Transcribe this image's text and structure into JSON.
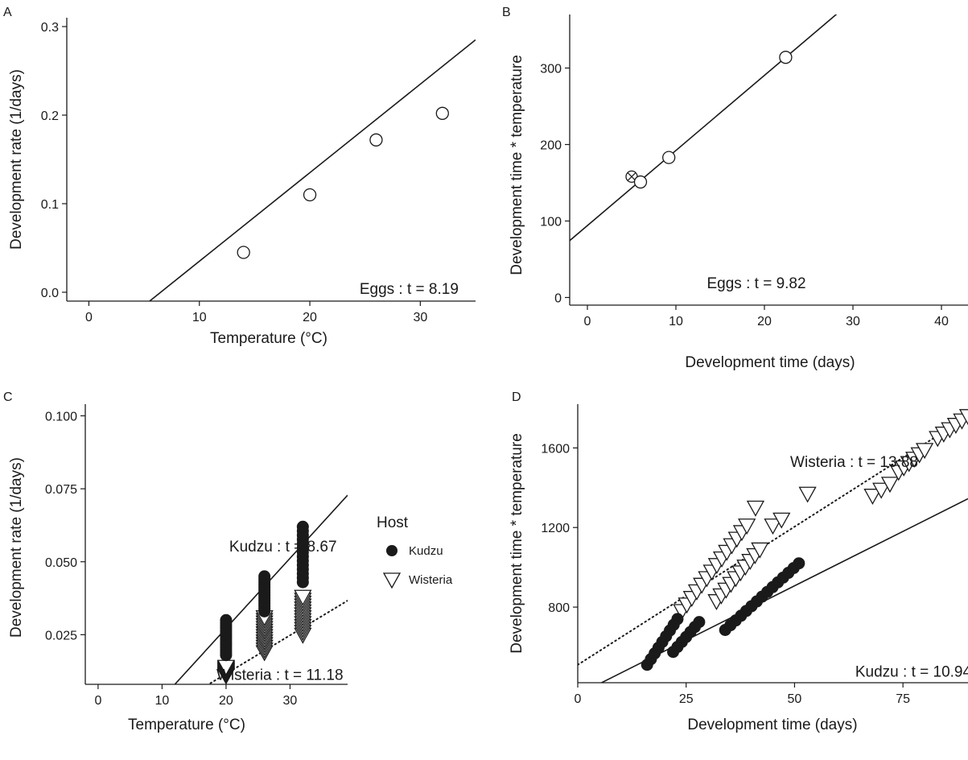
{
  "chart_data": [
    {
      "panel": "A",
      "type": "scatter",
      "xlabel": "Temperature (°C)",
      "ylabel": "Development rate (1/days)",
      "xlim": [
        -2,
        35
      ],
      "ylim": [
        -0.01,
        0.31
      ],
      "xticks": [
        0,
        10,
        20,
        30
      ],
      "yticks": [
        0.0,
        0.1,
        0.2,
        0.3
      ],
      "ytick_labels": [
        "0.0",
        "0.1",
        "0.2",
        "0.3"
      ],
      "points": [
        {
          "x": 14,
          "y": 0.045
        },
        {
          "x": 20,
          "y": 0.11
        },
        {
          "x": 26,
          "y": 0.172
        },
        {
          "x": 32,
          "y": 0.202
        }
      ],
      "fit_line": {
        "slope": 0.01,
        "intercept": -0.065,
        "x_from": -2,
        "x_to": 35,
        "style": "solid"
      },
      "annotation": {
        "text": "Eggs : t = 8.19",
        "x": 24.5,
        "y": -0.002
      }
    },
    {
      "panel": "B",
      "type": "scatter",
      "xlabel": "Development time (days)",
      "ylabel": "Development time * temperature",
      "xlim": [
        -2,
        43
      ],
      "ylim": [
        -10,
        370
      ],
      "xticks": [
        0,
        10,
        20,
        30,
        40
      ],
      "yticks": [
        0,
        100,
        200,
        300
      ],
      "ytick_labels": [
        "0",
        "100",
        "200",
        "300"
      ],
      "points": [
        {
          "x": 5,
          "y": 158,
          "marker": "crossed-circle"
        },
        {
          "x": 6,
          "y": 151
        },
        {
          "x": 9.2,
          "y": 183
        },
        {
          "x": 22.4,
          "y": 314
        }
      ],
      "fit_line": {
        "slope": 9.82,
        "intercept": 94,
        "x_from": -2,
        "x_to": 43,
        "style": "solid"
      },
      "annotation": {
        "text": "Eggs : t = 9.82",
        "x": 13.5,
        "y": 12
      }
    },
    {
      "panel": "C",
      "type": "scatter",
      "xlabel": "Temperature (°C)",
      "ylabel": "Development rate (1/days)",
      "xlim": [
        -2,
        39
      ],
      "ylim": [
        0.008,
        0.104
      ],
      "xticks": [
        0,
        10,
        20,
        30
      ],
      "yticks": [
        0.025,
        0.05,
        0.075,
        0.1
      ],
      "ytick_labels": [
        "0.025",
        "0.050",
        "0.075",
        "0.100"
      ],
      "series": [
        {
          "name": "Kudzu",
          "marker": "filled-circle",
          "groups": [
            {
              "x": 20,
              "y_min": 0.018,
              "y_max": 0.03
            },
            {
              "x": 26,
              "y_min": 0.033,
              "y_max": 0.045
            },
            {
              "x": 32,
              "y_min": 0.043,
              "y_max": 0.062
            }
          ],
          "fit_line": {
            "slope": 0.0024,
            "intercept": -0.0208,
            "style": "solid"
          },
          "annotation": {
            "text": "Kudzu : t = 8.67",
            "x": 20.5,
            "y": 0.0535
          }
        },
        {
          "name": "Wisteria",
          "marker": "open-triangle-down",
          "groups": [
            {
              "x": 20,
              "y_min": 0.011,
              "y_max": 0.014
            },
            {
              "x": 26,
              "y_min": 0.019,
              "y_max": 0.031
            },
            {
              "x": 32,
              "y_min": 0.025,
              "y_max": 0.038
            }
          ],
          "fit_line": {
            "slope": 0.00132,
            "intercept": -0.0148,
            "style": "dotted"
          },
          "annotation": {
            "text": "Wisteria : t = 11.18",
            "x": 18.5,
            "y": 0.0095
          }
        }
      ],
      "legend": {
        "title": "Host",
        "position": "right",
        "entries": [
          "Kudzu",
          "Wisteria"
        ]
      }
    },
    {
      "panel": "D",
      "type": "scatter",
      "xlabel": "Development time (days)",
      "ylabel": "Development time * temperature",
      "xlim": [
        0,
        90
      ],
      "ylim": [
        420,
        1820
      ],
      "xticks": [
        0,
        25,
        50,
        75
      ],
      "yticks": [
        800,
        1200,
        1600
      ],
      "ytick_labels": [
        "800",
        "1200",
        "1600"
      ],
      "series": [
        {
          "name": "Kudzu",
          "marker": "filled-circle",
          "segments": [
            {
              "x_from": 16,
              "y_from": 510,
              "x_to": 23,
              "y_to": 740,
              "n": 9
            },
            {
              "x_from": 22,
              "y_from": 575,
              "x_to": 28,
              "y_to": 725,
              "n": 7
            },
            {
              "x_from": 34,
              "y_from": 685,
              "x_to": 51,
              "y_to": 1020,
              "n": 15
            }
          ],
          "fit_line": {
            "slope": 10.94,
            "intercept": 360,
            "style": "solid"
          },
          "annotation": {
            "text": "Kudzu : t = 10.94",
            "x": 64,
            "y": 450
          }
        },
        {
          "name": "Wisteria",
          "marker": "open-triangle-down",
          "segments": [
            {
              "x_from": 24,
              "y_from": 780,
              "x_to": 39,
              "y_to": 1210,
              "n": 14
            },
            {
              "x_from": 32,
              "y_from": 830,
              "x_to": 42,
              "y_to": 1090,
              "n": 10
            },
            {
              "x_from": 41,
              "y_from": 1300,
              "x_to": 41,
              "y_to": 1300,
              "n": 1
            },
            {
              "x_from": 45,
              "y_from": 1210,
              "x_to": 47,
              "y_to": 1240,
              "n": 2
            },
            {
              "x_from": 53,
              "y_from": 1370,
              "x_to": 53,
              "y_to": 1370,
              "n": 1
            },
            {
              "x_from": 68,
              "y_from": 1360,
              "x_to": 72,
              "y_to": 1420,
              "n": 3
            },
            {
              "x_from": 74,
              "y_from": 1480,
              "x_to": 80,
              "y_to": 1590,
              "n": 6
            },
            {
              "x_from": 83,
              "y_from": 1650,
              "x_to": 90,
              "y_to": 1760,
              "n": 6
            }
          ],
          "fit_line": {
            "slope": 13.88,
            "intercept": 510,
            "style": "dotted"
          },
          "annotation": {
            "text": "Wisteria : t = 13.88",
            "x": 49,
            "y": 1505
          }
        }
      ]
    }
  ]
}
